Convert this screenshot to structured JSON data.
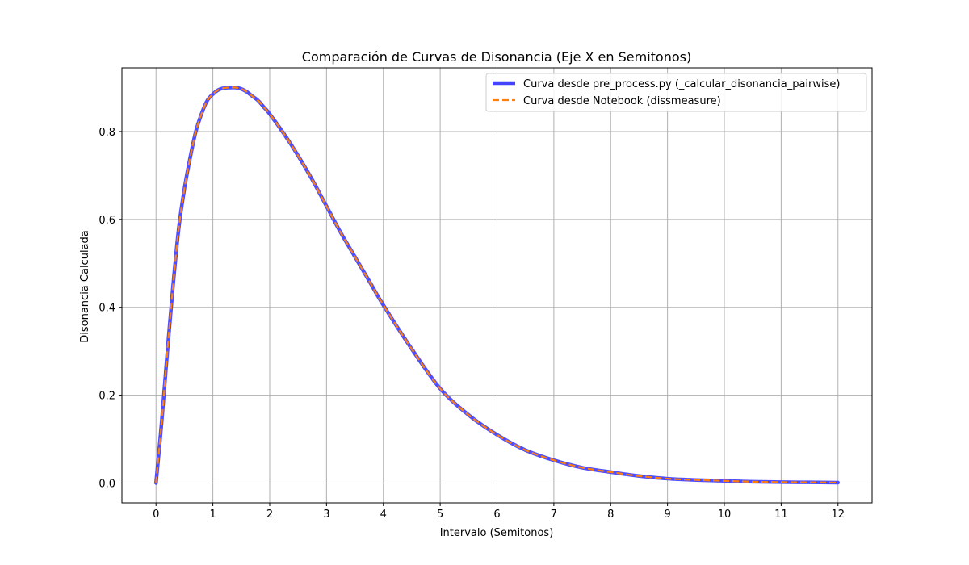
{
  "chart_data": {
    "type": "line",
    "title": "Comparación de Curvas de Disonancia (Eje X en Semitonos)",
    "xlabel": "Intervalo (Semitonos)",
    "ylabel": "Disonancia Calculada",
    "xlim": [
      -0.6,
      12.6
    ],
    "ylim": [
      -0.045,
      0.945
    ],
    "xticks": [
      0,
      1,
      2,
      3,
      4,
      5,
      6,
      7,
      8,
      9,
      10,
      11,
      12
    ],
    "yticks": [
      0.0,
      0.2,
      0.4,
      0.6,
      0.8
    ],
    "ytick_labels": [
      "0.0",
      "0.2",
      "0.4",
      "0.6",
      "0.8"
    ],
    "grid": true,
    "legend_position": "top-right",
    "x": [
      0,
      0.1,
      0.2,
      0.3,
      0.4,
      0.5,
      0.6,
      0.7,
      0.8,
      0.9,
      1.0,
      1.1,
      1.2,
      1.3,
      1.4,
      1.5,
      1.6,
      1.7,
      1.8,
      1.9,
      2.0,
      2.25,
      2.5,
      2.75,
      3.0,
      3.25,
      3.5,
      3.75,
      4.0,
      4.5,
      5.0,
      5.5,
      6.0,
      6.5,
      7.0,
      7.5,
      8.0,
      8.5,
      9.0,
      9.5,
      10.0,
      10.5,
      11.0,
      11.5,
      12.0
    ],
    "series": [
      {
        "name": "Curva desde pre_process.py (_calcular_disonancia_pairwise)",
        "color": "#4444ff",
        "style": "solid",
        "values": [
          0.0,
          0.14,
          0.3,
          0.45,
          0.58,
          0.67,
          0.74,
          0.8,
          0.84,
          0.87,
          0.885,
          0.895,
          0.899,
          0.9,
          0.9,
          0.897,
          0.89,
          0.88,
          0.87,
          0.855,
          0.84,
          0.795,
          0.745,
          0.69,
          0.63,
          0.57,
          0.515,
          0.46,
          0.405,
          0.305,
          0.215,
          0.155,
          0.11,
          0.075,
          0.052,
          0.035,
          0.025,
          0.016,
          0.01,
          0.007,
          0.005,
          0.003,
          0.002,
          0.0015,
          0.001
        ]
      },
      {
        "name": "Curva desde Notebook (dissmeasure)",
        "color": "#ff7f0e",
        "style": "dashed",
        "values": [
          0.0,
          0.14,
          0.3,
          0.45,
          0.58,
          0.67,
          0.74,
          0.8,
          0.84,
          0.87,
          0.885,
          0.895,
          0.899,
          0.9,
          0.9,
          0.897,
          0.89,
          0.88,
          0.87,
          0.855,
          0.84,
          0.795,
          0.745,
          0.69,
          0.63,
          0.57,
          0.515,
          0.46,
          0.405,
          0.305,
          0.215,
          0.155,
          0.11,
          0.075,
          0.052,
          0.035,
          0.025,
          0.016,
          0.01,
          0.007,
          0.005,
          0.003,
          0.002,
          0.0015,
          0.001
        ]
      }
    ]
  }
}
